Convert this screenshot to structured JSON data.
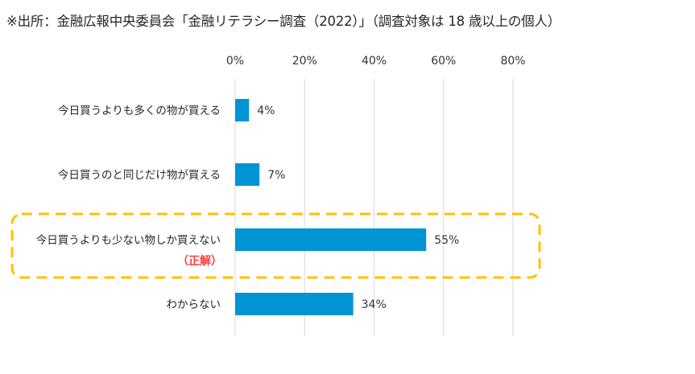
{
  "source_note": "※出所：金融広報中央委員会「金融リテラシー調査（2022）」（調査対象は 18 歳以上の個人）",
  "chart_data": {
    "type": "bar",
    "orientation": "horizontal",
    "title": "",
    "xlabel": "",
    "ylabel": "",
    "xlim": [
      0,
      80
    ],
    "x_ticks": [
      0,
      20,
      40,
      60,
      80
    ],
    "tick_suffix": "%",
    "grid": true,
    "bar_color": "#0094d4",
    "grid_color": "#d9d9d9",
    "highlight_color": "#ffc000",
    "categories": [
      "今日買うよりも多くの物が買える",
      "今日買うのと同じだけ物が買える",
      "今日買うよりも少ない物しか買えない",
      "わからない"
    ],
    "values": [
      4,
      7,
      55,
      34
    ],
    "value_labels": [
      "4%",
      "7%",
      "55%",
      "34%"
    ],
    "highlight_index": 2,
    "answer_note": "（正解）",
    "answer_note_color": "#ff3b3b"
  }
}
